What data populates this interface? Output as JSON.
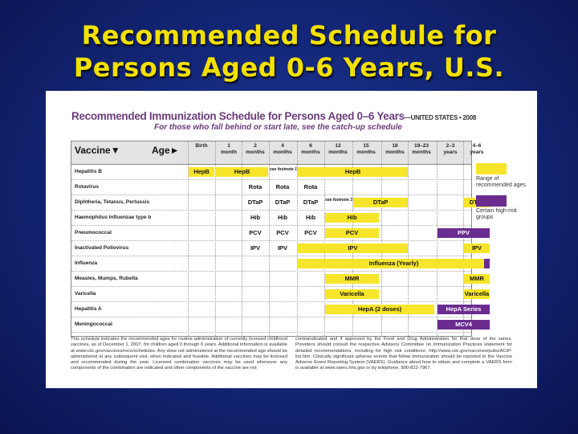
{
  "slide": {
    "title_line1": "Recommended Schedule for",
    "title_line2": "Persons Aged 0-6 Years, U.S."
  },
  "colors": {
    "background": "#14287a",
    "title": "#f2e000",
    "recommended_range": "#f6e52a",
    "high_risk": "#6a2c8f",
    "sheet_title": "#6b3d7a"
  },
  "sheet": {
    "title": "Recommended Immunization Schedule for Persons Aged 0–6 Years",
    "country_year": "—UNITED STATES • 2008",
    "subtitle": "For those who fall behind or start late, see the catch-up schedule",
    "vaccine_header": "Vaccine▼",
    "age_header": "Age►",
    "ages": [
      {
        "l1": "Birth",
        "l2": ""
      },
      {
        "l1": "1",
        "l2": "month"
      },
      {
        "l1": "2",
        "l2": "months"
      },
      {
        "l1": "4",
        "l2": "months"
      },
      {
        "l1": "6",
        "l2": "months"
      },
      {
        "l1": "12",
        "l2": "months"
      },
      {
        "l1": "15",
        "l2": "months"
      },
      {
        "l1": "18",
        "l2": "months"
      },
      {
        "l1": "19–23",
        "l2": "months"
      },
      {
        "l1": "2–3",
        "l2": "years"
      },
      {
        "l1": "4–6",
        "l2": "years"
      }
    ],
    "vaccines": [
      "Hepatitis B",
      "Rotavirus",
      "Diphtheria, Tetanus, Pertussis",
      "Haemophilus influenzae type b",
      "Pneumococcal",
      "Inactivated Poliovirus",
      "Influenza",
      "Measles, Mumps, Rubella",
      "Varicella",
      "Hepatitis A",
      "Meningococcal"
    ],
    "cells": {
      "hepb_birth": "HepB",
      "hepb_1_2": "HepB",
      "hepb_note": "see footnote 1",
      "hepb_6_18": "HepB",
      "rota_2": "Rota",
      "rota_4": "Rota",
      "rota_6": "Rota",
      "dtap_2": "DTaP",
      "dtap_4": "DTaP",
      "dtap_6": "DTaP",
      "dtap_note": "see footnote 3",
      "dtap_15_18": "DTaP",
      "dtap_4_6": "DTaP",
      "hib_2": "Hib",
      "hib_4": "Hib",
      "hib_6": "Hib",
      "hib_12_15": "Hib",
      "pcv_2": "PCV",
      "pcv_4": "PCV",
      "pcv_6": "PCV",
      "pcv_12_15": "PCV",
      "ppv": "PPV",
      "ipv_2": "IPV",
      "ipv_4": "IPV",
      "ipv_6_18": "IPV",
      "ipv_4_6": "IPV",
      "influenza": "Influenza (Yearly)",
      "mmr_12_15": "MMR",
      "mmr_4_6": "MMR",
      "var_12_15": "Varicella",
      "var_4_6": "Varicella",
      "hepa": "HepA (2 doses)",
      "hepa_series": "HepA Series",
      "mcv4": "MCV4"
    },
    "legend": {
      "range_label": "Range of recommended ages",
      "risk_label": "Certain high-risk groups"
    },
    "footnote_left": "This schedule indicates the recommended ages for routine administration of currently licensed childhood vaccines, as of December 1, 2007, for children aged 0 through 6 years. Additional information is available at www.cdc.gov/vaccines/recs/schedules. Any dose not administered at the recommended age should be administered at any subsequent visit, when indicated and feasible. Additional vaccines may be licensed and recommended during the year. Licensed combination vaccines may be used whenever any components of the combination are indicated and other components of the vaccine are not",
    "footnote_right": "contraindicated and if approved by the Food and Drug Administration for that dose of the series. Providers should consult the respective Advisory Committee on Immunization Practices statement for detailed recommendations, including for high risk conditions: http://www.cdc.gov/vaccines/pubs/ACIP-list.htm. Clinically significant adverse events that follow immunization should be reported to the Vaccine Adverse Event Reporting System (VAERS). Guidance about how to obtain and complete a VAERS form is available at www.vaers.hhs.gov or by telephone, 800-822-7967."
  }
}
